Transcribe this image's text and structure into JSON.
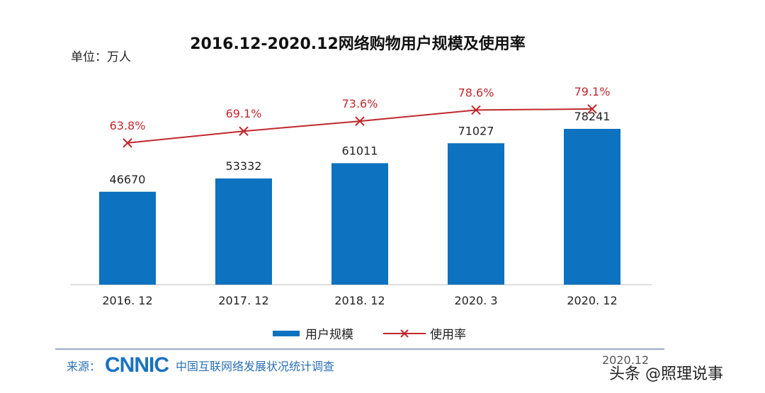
{
  "chart_data": {
    "type": "bar+line",
    "title": "2016.12-2020.12网络购物用户规模及使用率",
    "unit_label": "单位：万人",
    "categories": [
      "2016. 12",
      "2017. 12",
      "2018. 12",
      "2020. 3",
      "2020. 12"
    ],
    "series": [
      {
        "name": "用户规模",
        "type": "bar",
        "color": "#0d72bf",
        "values": [
          46670,
          53332,
          61011,
          71027,
          78241
        ],
        "labels": [
          "46670",
          "53332",
          "61011",
          "71027",
          "78241"
        ]
      },
      {
        "name": "使用率",
        "type": "line",
        "color": "#c0282d",
        "marker": "x",
        "values": [
          63.8,
          69.1,
          73.6,
          78.6,
          79.1
        ],
        "labels": [
          "63.8%",
          "69.1%",
          "73.6%",
          "78.6%",
          "79.1%"
        ]
      }
    ],
    "legend_position": "bottom",
    "grid": false
  },
  "footer": {
    "source_label": "来源：",
    "logo": "CNNIC",
    "source_text": "中国互联网络发展状况统计调查",
    "date": "2020.12"
  },
  "watermark": "头条 @照理说事"
}
